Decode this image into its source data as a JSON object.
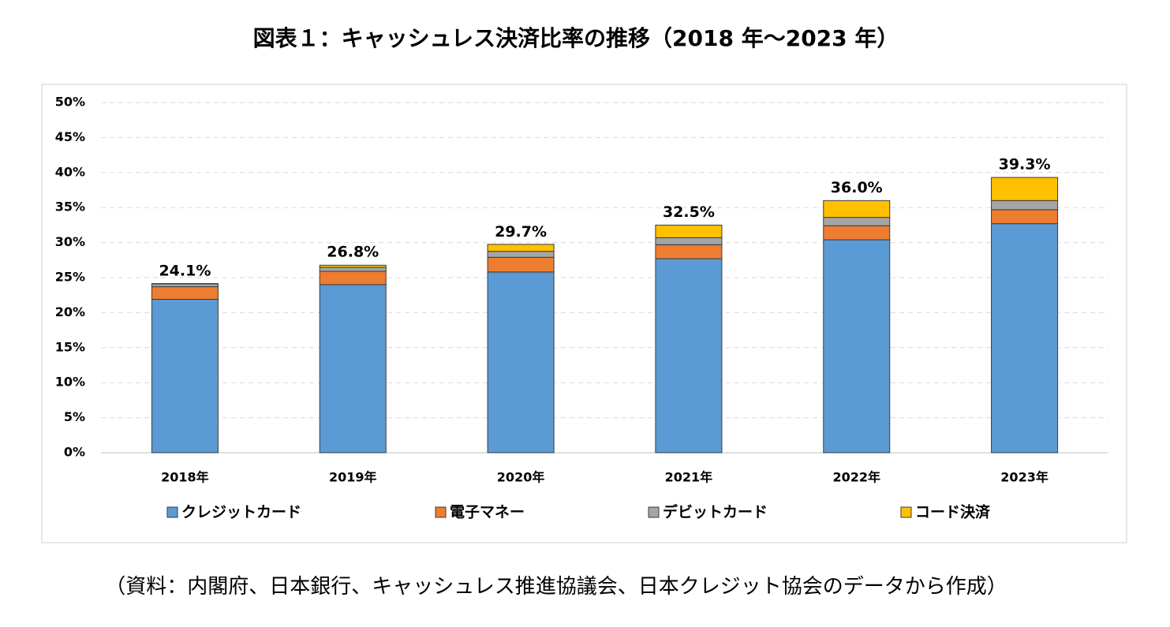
{
  "title": "図表１：キャッシュレス決済比率の推移（2018 年～2023 年）",
  "source": "（資料：内閣府、日本銀行、キャッシュレス推進協議会、日本クレジット協会のデータから作成）",
  "chart_data": {
    "type": "stacked_bar",
    "categories": [
      "2018年",
      "2019年",
      "2020年",
      "2021年",
      "2022年",
      "2023年"
    ],
    "series": [
      {
        "name": "クレジットカード",
        "color": "#5b9bd5",
        "values": [
          21.9,
          24.0,
          25.8,
          27.7,
          30.4,
          32.7
        ]
      },
      {
        "name": "電子マネー",
        "color": "#ed7d31",
        "values": [
          1.8,
          1.9,
          2.1,
          2.0,
          2.0,
          2.0
        ]
      },
      {
        "name": "デビットカード",
        "color": "#a5a5a5",
        "values": [
          0.4,
          0.56,
          0.85,
          1.0,
          1.2,
          1.3
        ]
      },
      {
        "name": "コード決済",
        "color": "#ffc000",
        "values": [
          0.05,
          0.31,
          1.0,
          1.8,
          2.4,
          3.3
        ]
      }
    ],
    "totals": [
      24.1,
      26.8,
      29.7,
      32.5,
      36.0,
      39.3
    ],
    "total_labels": [
      "24.1%",
      "26.8%",
      "29.7%",
      "32.5%",
      "36.0%",
      "39.3%"
    ],
    "ylim": [
      0,
      50
    ],
    "yticks": [
      {
        "value": 0,
        "label": "0%"
      },
      {
        "value": 5,
        "label": "5%"
      },
      {
        "value": 10,
        "label": "10%"
      },
      {
        "value": 15,
        "label": "15%"
      },
      {
        "value": 20,
        "label": "20%"
      },
      {
        "value": 25,
        "label": "25%"
      },
      {
        "value": 30,
        "label": "30%"
      },
      {
        "value": 35,
        "label": "35%"
      },
      {
        "value": 40,
        "label": "40%"
      },
      {
        "value": 45,
        "label": "45%"
      },
      {
        "value": 50,
        "label": "50%"
      }
    ],
    "grid": true,
    "legend": "bottom"
  }
}
